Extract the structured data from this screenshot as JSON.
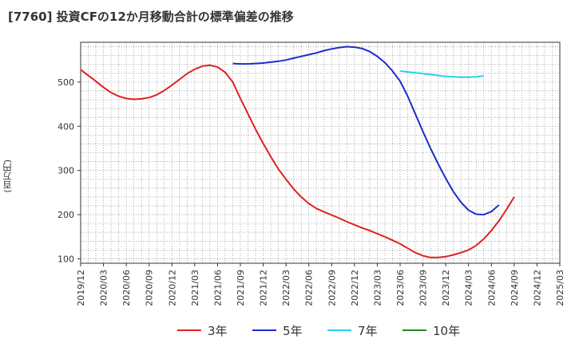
{
  "title": "[7760]  投資CFの12か月移動合計の標準偏差の推移",
  "chart_data": {
    "type": "line",
    "ylabel": "(百万円)",
    "ylim": [
      90,
      590
    ],
    "yticks": [
      100,
      200,
      300,
      400,
      500
    ],
    "x_tick_labels": [
      "2019/12",
      "2020/03",
      "2020/06",
      "2020/09",
      "2020/12",
      "2021/03",
      "2021/06",
      "2021/09",
      "2021/12",
      "2022/03",
      "2022/06",
      "2022/09",
      "2022/12",
      "2023/03",
      "2023/06",
      "2023/09",
      "2023/12",
      "2024/03",
      "2024/06",
      "2024/09",
      "2024/12",
      "2025/03"
    ],
    "grid": true,
    "legend_position": "bottom",
    "series": [
      {
        "name": "3年",
        "color": "#dd2222",
        "points": [
          [
            "2019/12",
            528
          ],
          [
            "2020/01",
            515
          ],
          [
            "2020/02",
            502
          ],
          [
            "2020/03",
            488
          ],
          [
            "2020/04",
            476
          ],
          [
            "2020/05",
            468
          ],
          [
            "2020/06",
            463
          ],
          [
            "2020/07",
            461
          ],
          [
            "2020/08",
            462
          ],
          [
            "2020/09",
            465
          ],
          [
            "2020/10",
            471
          ],
          [
            "2020/11",
            481
          ],
          [
            "2020/12",
            493
          ],
          [
            "2021/01",
            506
          ],
          [
            "2021/02",
            519
          ],
          [
            "2021/03",
            529
          ],
          [
            "2021/04",
            536
          ],
          [
            "2021/05",
            538
          ],
          [
            "2021/06",
            534
          ],
          [
            "2021/07",
            522
          ],
          [
            "2021/08",
            500
          ],
          [
            "2021/09",
            463
          ],
          [
            "2021/10",
            428
          ],
          [
            "2021/11",
            393
          ],
          [
            "2021/12",
            361
          ],
          [
            "2022/01",
            331
          ],
          [
            "2022/02",
            303
          ],
          [
            "2022/03",
            280
          ],
          [
            "2022/04",
            258
          ],
          [
            "2022/05",
            240
          ],
          [
            "2022/06",
            225
          ],
          [
            "2022/07",
            214
          ],
          [
            "2022/08",
            206
          ],
          [
            "2022/09",
            199
          ],
          [
            "2022/10",
            192
          ],
          [
            "2022/11",
            184
          ],
          [
            "2022/12",
            177
          ],
          [
            "2023/01",
            170
          ],
          [
            "2023/02",
            164
          ],
          [
            "2023/03",
            157
          ],
          [
            "2023/04",
            150
          ],
          [
            "2023/05",
            142
          ],
          [
            "2023/06",
            134
          ],
          [
            "2023/07",
            124
          ],
          [
            "2023/08",
            114
          ],
          [
            "2023/09",
            107
          ],
          [
            "2023/10",
            103
          ],
          [
            "2023/11",
            103
          ],
          [
            "2023/12",
            105
          ],
          [
            "2024/01",
            109
          ],
          [
            "2024/02",
            114
          ],
          [
            "2024/03",
            120
          ],
          [
            "2024/04",
            130
          ],
          [
            "2024/05",
            145
          ],
          [
            "2024/06",
            164
          ],
          [
            "2024/07",
            186
          ],
          [
            "2024/08",
            212
          ],
          [
            "2024/09",
            240
          ]
        ]
      },
      {
        "name": "5年",
        "color": "#1a2ecc",
        "points": [
          [
            "2021/08",
            542
          ],
          [
            "2021/09",
            541
          ],
          [
            "2021/10",
            541
          ],
          [
            "2021/11",
            542
          ],
          [
            "2021/12",
            543
          ],
          [
            "2022/01",
            545
          ],
          [
            "2022/02",
            547
          ],
          [
            "2022/03",
            550
          ],
          [
            "2022/04",
            554
          ],
          [
            "2022/05",
            558
          ],
          [
            "2022/06",
            562
          ],
          [
            "2022/07",
            566
          ],
          [
            "2022/08",
            571
          ],
          [
            "2022/09",
            575
          ],
          [
            "2022/10",
            578
          ],
          [
            "2022/11",
            580
          ],
          [
            "2022/12",
            579
          ],
          [
            "2023/01",
            576
          ],
          [
            "2023/02",
            569
          ],
          [
            "2023/03",
            558
          ],
          [
            "2023/04",
            544
          ],
          [
            "2023/05",
            525
          ],
          [
            "2023/06",
            502
          ],
          [
            "2023/07",
            468
          ],
          [
            "2023/08",
            428
          ],
          [
            "2023/09",
            388
          ],
          [
            "2023/10",
            350
          ],
          [
            "2023/11",
            315
          ],
          [
            "2023/12",
            282
          ],
          [
            "2024/01",
            252
          ],
          [
            "2024/02",
            228
          ],
          [
            "2024/03",
            210
          ],
          [
            "2024/04",
            201
          ],
          [
            "2024/05",
            200
          ],
          [
            "2024/06",
            207
          ],
          [
            "2024/07",
            222
          ]
        ]
      },
      {
        "name": "7年",
        "color": "#22d3ee",
        "points": [
          [
            "2023/06",
            525
          ],
          [
            "2023/07",
            523
          ],
          [
            "2023/08",
            521
          ],
          [
            "2023/09",
            519
          ],
          [
            "2023/10",
            517
          ],
          [
            "2023/11",
            515
          ],
          [
            "2023/12",
            513
          ],
          [
            "2024/01",
            512
          ],
          [
            "2024/02",
            511
          ],
          [
            "2024/03",
            511
          ],
          [
            "2024/04",
            512
          ],
          [
            "2024/05",
            514
          ]
        ]
      },
      {
        "name": "10年",
        "color": "#228822",
        "points": []
      }
    ]
  }
}
